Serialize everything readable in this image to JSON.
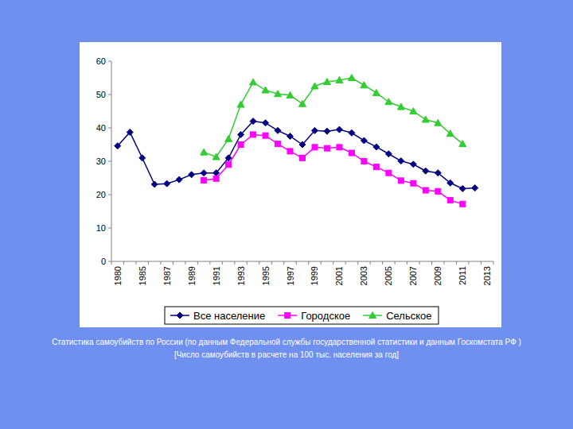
{
  "chart_data": {
    "type": "line",
    "title": "Статистика самоубийств по России (по данным Федеральной службы государственной статистики и данным Госкомстата РФ )",
    "subtitle": "[Число самоубийств в расчете на 100 тыс. населения за год]",
    "categories": [
      "1980",
      null,
      "1985",
      null,
      "1987",
      null,
      "1989",
      null,
      "1991",
      null,
      "1993",
      null,
      "1995",
      null,
      "1997",
      null,
      "1999",
      null,
      "2001",
      null,
      "2003",
      null,
      "2005",
      null,
      "2007",
      null,
      "2009",
      null,
      "2011",
      null,
      "2013"
    ],
    "series": [
      {
        "name": "Все население",
        "color": "#000080",
        "marker": "diamond",
        "values": [
          34.6,
          38.7,
          31,
          23.1,
          23.3,
          24.5,
          26,
          26.5,
          26.5,
          31,
          38,
          42,
          41.5,
          39.2,
          37.5,
          35,
          39.2,
          39,
          39.5,
          38.5,
          36.2,
          34.3,
          32.2,
          30.1,
          29.1,
          27.1,
          26.5,
          23.5,
          21.8,
          22,
          null
        ]
      },
      {
        "name": "Городское",
        "color": "#ff00ff",
        "marker": "square",
        "values": [
          null,
          null,
          null,
          null,
          null,
          null,
          null,
          24.3,
          24.8,
          29,
          35,
          38,
          37.7,
          35.2,
          33,
          31,
          34.2,
          33.9,
          34.2,
          32.5,
          30,
          28.3,
          26.5,
          24.2,
          23.4,
          21.3,
          21,
          18.3,
          17.2,
          null,
          null
        ]
      },
      {
        "name": "Сельское",
        "color": "#33cc33",
        "marker": "triangle",
        "values": [
          null,
          null,
          null,
          null,
          null,
          null,
          null,
          32.7,
          31.3,
          36.7,
          47,
          53.7,
          51.3,
          50.2,
          49.8,
          47.2,
          52.5,
          53.8,
          54.3,
          55,
          52.8,
          50.5,
          47.8,
          46.3,
          45,
          42.5,
          41.5,
          38.3,
          35.2,
          null,
          null
        ]
      }
    ],
    "ylim": [
      0,
      60
    ],
    "yticks": [
      0,
      10,
      20,
      30,
      40,
      50,
      60
    ],
    "grid": false,
    "legend": "bottom"
  }
}
